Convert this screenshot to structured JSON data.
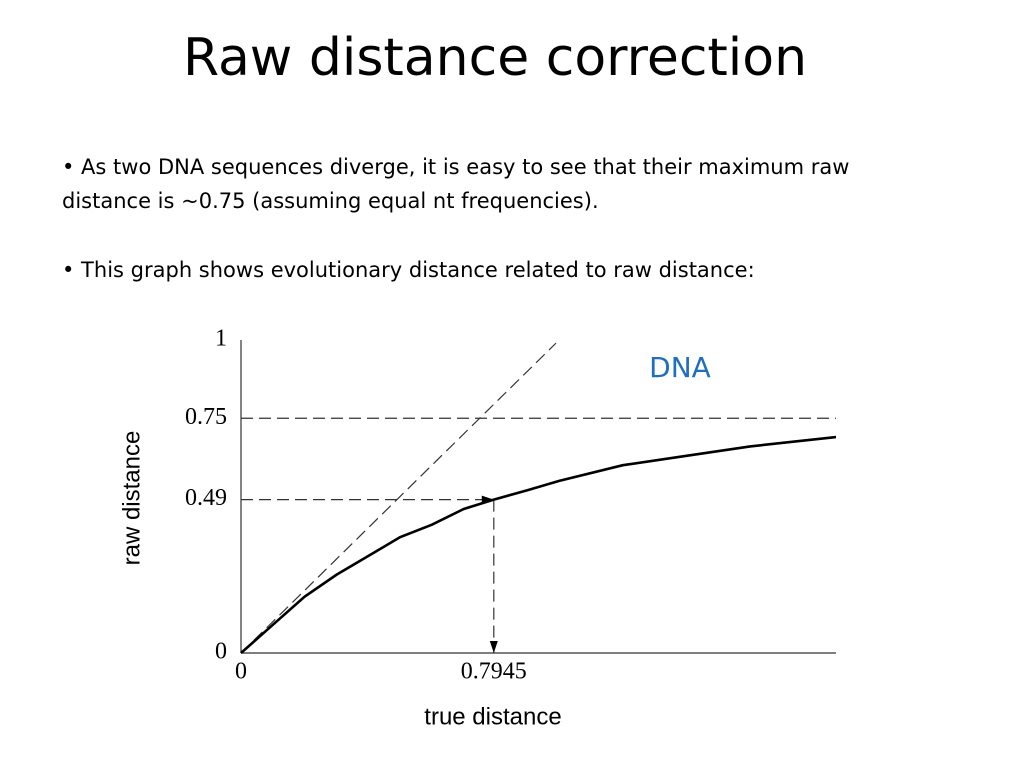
{
  "slide": {
    "title": "Raw distance correction",
    "bullets": [
      "• As two DNA sequences diverge, it is easy to see that their maximum raw distance is ~0.75 (assuming equal nt frequencies).",
      "• This graph shows evolutionary distance related to raw distance:"
    ]
  },
  "chart_data": {
    "type": "line",
    "x_label": "true distance",
    "y_label": "raw distance",
    "annotation": "DNA",
    "x": [
      0,
      0.1,
      0.2,
      0.3,
      0.4,
      0.5,
      0.6,
      0.7,
      0.7945,
      0.9,
      1.0,
      1.2,
      1.4,
      1.6,
      1.87
    ],
    "series": [
      {
        "color": "#000000",
        "values": [
          0,
          0.09,
          0.18,
          0.25,
          0.31,
          0.37,
          0.41,
          0.46,
          0.49,
          0.52,
          0.55,
          0.6,
          0.63,
          0.66,
          0.69
        ]
      }
    ],
    "diagonal": {
      "x": [
        0,
        0.99
      ],
      "values": [
        0,
        0.99
      ]
    },
    "xlim": [
      0,
      1.87
    ],
    "ylim": [
      0,
      1
    ],
    "xticks": [
      0,
      0.7945
    ],
    "yticks": [
      0,
      0.49,
      0.75,
      1
    ]
  }
}
